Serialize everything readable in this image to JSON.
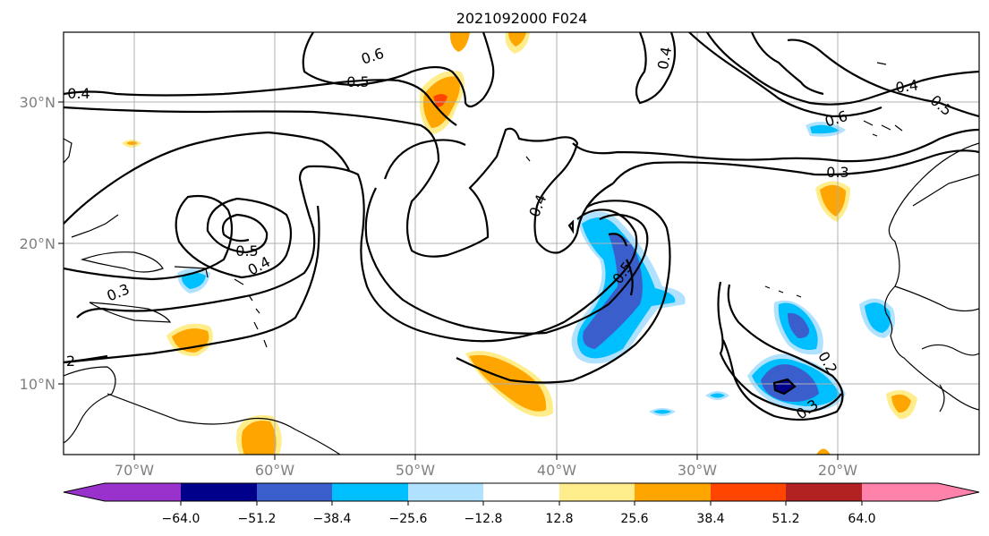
{
  "title": "2021092000 F024",
  "lon_labels": [
    "70°W",
    "60°W",
    "50°W",
    "40°W",
    "30°W",
    "20°W"
  ],
  "lat_labels": [
    "30°N",
    "20°N",
    "10°N"
  ],
  "colorbar": {
    "tick_labels": [
      "−64.0",
      "−51.2",
      "−38.4",
      "−25.6",
      "−12.8",
      "12.8",
      "25.6",
      "38.4",
      "51.2",
      "64.0"
    ],
    "colors": [
      "#9932cc",
      "#00008b",
      "#3a5fcd",
      "#00bfff",
      "#b0e2ff",
      "#ffffff",
      "#ffec8b",
      "#ffa500",
      "#ff4500",
      "#b22222",
      "#ff82ab"
    ]
  },
  "contour_labels": [
    "0.6",
    "0.5",
    "0.4",
    "0.4",
    "0.5",
    "0.4",
    "0.3",
    "0.4",
    "0.5",
    "0.4",
    "0.5",
    "0.6",
    "0.3",
    "0.2",
    "0.3",
    "2"
  ]
}
